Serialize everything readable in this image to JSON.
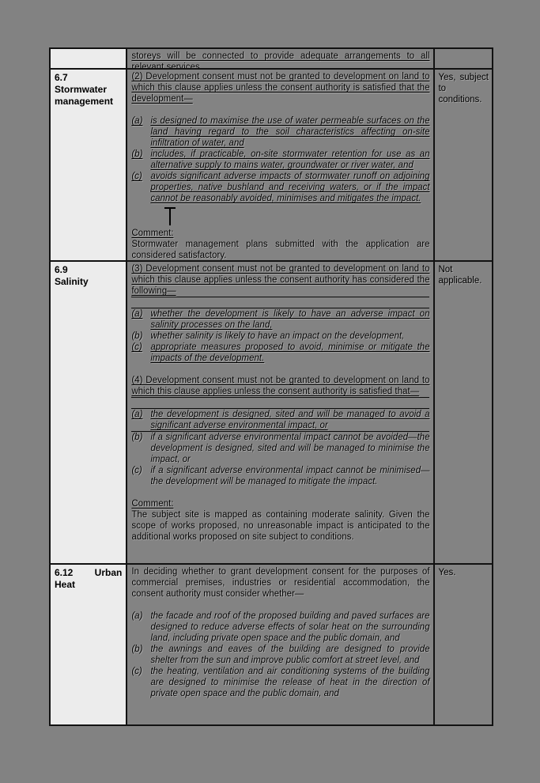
{
  "colors": {
    "page_background": "#828282",
    "clause_cell_background": "#ececec",
    "border": "#121212",
    "text": "#000000"
  },
  "table": {
    "rows": [
      {
        "clause_lines": [],
        "status": "",
        "paragraphs": [
          {
            "text": "storeys will be connected to provide adequate arrangements to all relevant services.",
            "cls": "u"
          }
        ]
      },
      {
        "clause_lines": [
          [
            "6.7"
          ],
          [
            "Stormwater"
          ],
          [
            "management"
          ]
        ],
        "status": "Yes, subject to conditions.",
        "paragraphs": [
          {
            "text": "(2) Development consent must not be granted to development on land to which this clause applies unless the consent authority is satisfied that the development—",
            "cls": "u"
          },
          {
            "text": "",
            "cls": "blank"
          },
          {
            "label": "(a)",
            "text": "is designed to maximise the use of water permeable surfaces on the land having regard to the soil characteristics affecting on-site infiltration of water, and",
            "cls": "item it u"
          },
          {
            "label": "(b)",
            "text": "includes, if practicable, on-site stormwater retention for use as an alternative supply to mains water, groundwater or river water, and",
            "cls": "item it u"
          },
          {
            "label": "(c)",
            "text": "avoids significant adverse impacts of stormwater runoff on adjoining properties, native bushland and receiving waters, or if the impact cannot be reasonably avoided, minimises and mitigates the impact.",
            "cls": "item it u"
          },
          {
            "text": "",
            "cls": "markline",
            "mark": true
          },
          {
            "text": "Comment:",
            "cls": "u"
          },
          {
            "text": "Stormwater management plans submitted with the application are considered satisfactory.",
            "cls": ""
          }
        ]
      },
      {
        "clause_lines": [
          [
            "6.9"
          ],
          [
            "Salinity"
          ]
        ],
        "status": "Not applicable.",
        "paragraphs": [
          {
            "text": "(3) Development consent must not be granted to development on land to which this clause applies unless the consent authority has considered the following—",
            "cls": "u fl"
          },
          {
            "text": "",
            "cls": "blank fl"
          },
          {
            "label": "(a)",
            "text": "whether the development is likely to have an adverse impact on salinity processes on the land,",
            "cls": "item it u"
          },
          {
            "label": "(b)",
            "text": "whether salinity is likely to have an impact on the development,",
            "cls": "item it"
          },
          {
            "label": "(c)",
            "text": "appropriate measures proposed to avoid, minimise or mitigate the impacts of the development.",
            "cls": "item it u"
          },
          {
            "text": "",
            "cls": "blank"
          },
          {
            "text": "(4) Development consent must not be granted to development on land to which this clause applies unless the consent authority is satisfied that—",
            "cls": "u fl"
          },
          {
            "text": "",
            "cls": "blank fl"
          },
          {
            "label": "(a)",
            "text": "the development is designed, sited and will be managed to avoid a significant adverse environmental impact, or",
            "cls": "item it u fl"
          },
          {
            "label": "(b)",
            "text": "if a significant adverse environmental impact cannot be avoided—the development is designed, sited and will be managed to minimise the impact, or",
            "cls": "item it"
          },
          {
            "label": "(c)",
            "text": "if a significant adverse environmental impact cannot be minimised—the development will be managed to mitigate the impact.",
            "cls": "item it"
          },
          {
            "text": "",
            "cls": "blank"
          },
          {
            "text": "Comment:",
            "cls": "u"
          },
          {
            "text": "The subject site is mapped as containing moderate salinity. Given the scope of works proposed, no unreasonable impact is anticipated to the additional works proposed on site subject to conditions.",
            "cls": ""
          }
        ]
      },
      {
        "clause_lines": [
          [
            "6.12",
            "Urban"
          ],
          [
            "Heat"
          ]
        ],
        "status": "Yes.",
        "paragraphs": [
          {
            "text": "In deciding whether to grant development consent for the purposes of commercial premises, industries or residential accommodation, the consent authority must consider whether—",
            "cls": ""
          },
          {
            "text": "",
            "cls": "blank"
          },
          {
            "label": "(a)",
            "text": "the facade and roof of the proposed building and paved surfaces are designed to reduce adverse effects of solar heat on the surrounding land, including private open space and the public domain, and",
            "cls": "item it"
          },
          {
            "label": "(b)",
            "text": "the awnings and eaves of the building are designed to provide shelter from the sun and improve public comfort at street level, and",
            "cls": "item it"
          },
          {
            "label": "(c)",
            "text": "the heating, ventilation and air conditioning systems of the building are designed to minimise the release of heat in the direction of private open space and the public domain, and",
            "cls": "item it"
          }
        ]
      }
    ]
  }
}
